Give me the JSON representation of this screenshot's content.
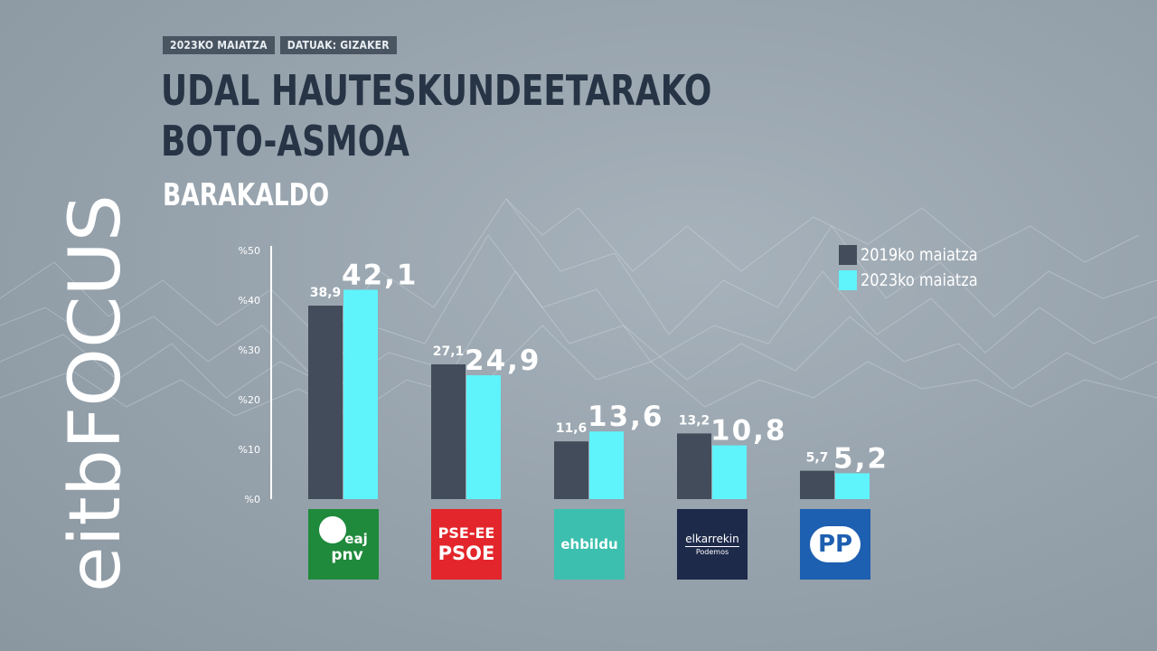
{
  "header": {
    "date_tag": "2023KO MAIATZA",
    "source_tag": "DATUAK: GIZAKER",
    "title_line1": "UDAL HAUTESKUNDEETARAKO",
    "title_line2": "BOTO-ASMOA",
    "subtitle": "BARAKALDO"
  },
  "brand": {
    "logo_text": "eitbFOCUS"
  },
  "legend": [
    {
      "label": "2019ko maiatza",
      "color": "#434c5a"
    },
    {
      "label": "2023ko maiatza",
      "color": "#5ff3fb"
    }
  ],
  "parties": [
    {
      "name": "EAJ-PNV",
      "logo_lines": [
        "eaj",
        "pnv"
      ],
      "logo_color": "#1f8a3c"
    },
    {
      "name": "PSE-EE PSOE",
      "logo_lines": [
        "PSE-EE",
        "PSOE"
      ],
      "logo_color": "#e3262b"
    },
    {
      "name": "EH Bildu",
      "logo_lines": [
        "ehbildu"
      ],
      "logo_color": "#3cbfae"
    },
    {
      "name": "Elkarrekin",
      "logo_lines": [
        "elkarrekin",
        "Podemos"
      ],
      "logo_color": "#1e2a4a"
    },
    {
      "name": "PP",
      "logo_lines": [
        "PP"
      ],
      "logo_color": "#1d5fb0"
    }
  ],
  "chart_data": {
    "type": "bar",
    "categories": [
      "EAJ-PNV",
      "PSE-EE PSOE",
      "EH Bildu",
      "Elkarrekin",
      "PP"
    ],
    "series": [
      {
        "name": "2019ko maiatza",
        "values": [
          38.9,
          27.1,
          11.6,
          13.2,
          5.7
        ],
        "labels": [
          "38,9",
          "27,1",
          "11,6",
          "13,2",
          "5,7"
        ]
      },
      {
        "name": "2023ko maiatza",
        "values": [
          42.1,
          24.9,
          13.6,
          10.8,
          5.2
        ],
        "labels": [
          "42,1",
          "24,9",
          "13,6",
          "10,8",
          "5,2"
        ]
      }
    ],
    "yticks": [
      "%0",
      "%10",
      "%20",
      "%30",
      "%40",
      "%50"
    ],
    "ylim": [
      0,
      50
    ],
    "grid": false,
    "legend_position": "top-right"
  }
}
